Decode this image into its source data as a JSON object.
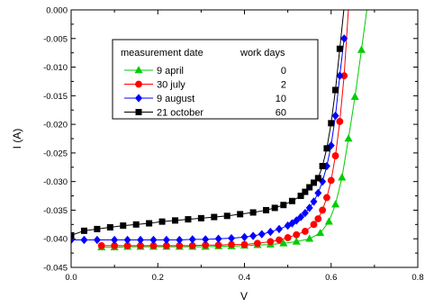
{
  "chart_data": {
    "type": "line",
    "xlabel": "V",
    "ylabel": "I (A)",
    "xlim": [
      0.0,
      0.8
    ],
    "ylim": [
      -0.045,
      0.0
    ],
    "x_ticks": [
      0.0,
      0.2,
      0.4,
      0.6,
      0.8
    ],
    "x_tick_labels": [
      "0.0",
      "0.2",
      "0.4",
      "0.6",
      "0.8"
    ],
    "y_ticks": [
      0.0,
      -0.005,
      -0.01,
      -0.015,
      -0.02,
      -0.025,
      -0.03,
      -0.035,
      -0.04,
      -0.045
    ],
    "y_tick_labels": [
      "0.000",
      "-0.005",
      "-0.010",
      "-0.015",
      "-0.020",
      "-0.025",
      "-0.030",
      "-0.035",
      "-0.040",
      "-0.045"
    ],
    "legend": {
      "header_left": "measurement date",
      "header_right": "work days",
      "placement": "upper-center"
    },
    "series": [
      {
        "name": "9 april",
        "days": "0",
        "color": "#00cc00",
        "marker": "triangle",
        "x": [
          0.07,
          0.1,
          0.13,
          0.16,
          0.19,
          0.22,
          0.25,
          0.28,
          0.31,
          0.34,
          0.37,
          0.4,
          0.43,
          0.46,
          0.49,
          0.52,
          0.55,
          0.575,
          0.595,
          0.61,
          0.625,
          0.64,
          0.655,
          0.67,
          0.685
        ],
        "y": [
          -0.0415,
          -0.0415,
          -0.0414,
          -0.0414,
          -0.0414,
          -0.0414,
          -0.0414,
          -0.0414,
          -0.0414,
          -0.0413,
          -0.0413,
          -0.0412,
          -0.0411,
          -0.041,
          -0.0408,
          -0.0405,
          -0.04,
          -0.039,
          -0.037,
          -0.034,
          -0.0293,
          -0.0225,
          -0.0152,
          -0.007,
          0.0015
        ]
      },
      {
        "name": "30 july",
        "days": "2",
        "color": "#ff0000",
        "marker": "circle",
        "x": [
          0.07,
          0.1,
          0.13,
          0.16,
          0.19,
          0.22,
          0.25,
          0.28,
          0.31,
          0.34,
          0.37,
          0.4,
          0.43,
          0.46,
          0.48,
          0.5,
          0.52,
          0.54,
          0.56,
          0.57,
          0.58,
          0.59,
          0.6,
          0.61,
          0.62,
          0.63,
          0.64
        ],
        "y": [
          -0.0412,
          -0.0412,
          -0.0412,
          -0.0412,
          -0.0412,
          -0.0412,
          -0.0412,
          -0.0412,
          -0.0411,
          -0.0411,
          -0.041,
          -0.041,
          -0.0408,
          -0.0405,
          -0.0402,
          -0.0398,
          -0.0393,
          -0.0387,
          -0.0375,
          -0.0365,
          -0.035,
          -0.0328,
          -0.0298,
          -0.0255,
          -0.0195,
          -0.0115,
          0.0002
        ]
      },
      {
        "name": "9 august",
        "days": "10",
        "color": "#0000ff",
        "marker": "diamond",
        "x": [
          0.0,
          0.03,
          0.06,
          0.1,
          0.13,
          0.16,
          0.19,
          0.22,
          0.25,
          0.28,
          0.31,
          0.34,
          0.37,
          0.4,
          0.42,
          0.44,
          0.46,
          0.48,
          0.5,
          0.51,
          0.52,
          0.53,
          0.54,
          0.55,
          0.56,
          0.57,
          0.58,
          0.59,
          0.6,
          0.61,
          0.62,
          0.63
        ],
        "y": [
          -0.0402,
          -0.0402,
          -0.0402,
          -0.0402,
          -0.0402,
          -0.0402,
          -0.0402,
          -0.0402,
          -0.0402,
          -0.0401,
          -0.0401,
          -0.04,
          -0.0399,
          -0.0397,
          -0.0395,
          -0.0392,
          -0.0388,
          -0.0383,
          -0.0377,
          -0.0373,
          -0.0368,
          -0.0362,
          -0.0355,
          -0.0346,
          -0.0335,
          -0.032,
          -0.03,
          -0.0273,
          -0.0237,
          -0.0185,
          -0.0115,
          -0.005
        ]
      },
      {
        "name": "21 october",
        "days": "60",
        "color": "#000000",
        "marker": "square",
        "x": [
          0.0,
          0.03,
          0.06,
          0.09,
          0.12,
          0.15,
          0.18,
          0.21,
          0.24,
          0.27,
          0.3,
          0.33,
          0.36,
          0.39,
          0.42,
          0.45,
          0.47,
          0.49,
          0.51,
          0.53,
          0.54,
          0.55,
          0.56,
          0.57,
          0.58,
          0.59,
          0.6,
          0.61,
          0.62,
          0.63
        ],
        "y": [
          -0.0394,
          -0.0386,
          -0.0383,
          -0.038,
          -0.0377,
          -0.0375,
          -0.0373,
          -0.037,
          -0.0368,
          -0.0366,
          -0.0364,
          -0.0362,
          -0.036,
          -0.0357,
          -0.0354,
          -0.035,
          -0.0346,
          -0.0341,
          -0.0334,
          -0.0325,
          -0.0318,
          -0.031,
          -0.0302,
          -0.0294,
          -0.0273,
          -0.0242,
          -0.0198,
          -0.014,
          -0.0068,
          0.0005
        ]
      }
    ]
  }
}
